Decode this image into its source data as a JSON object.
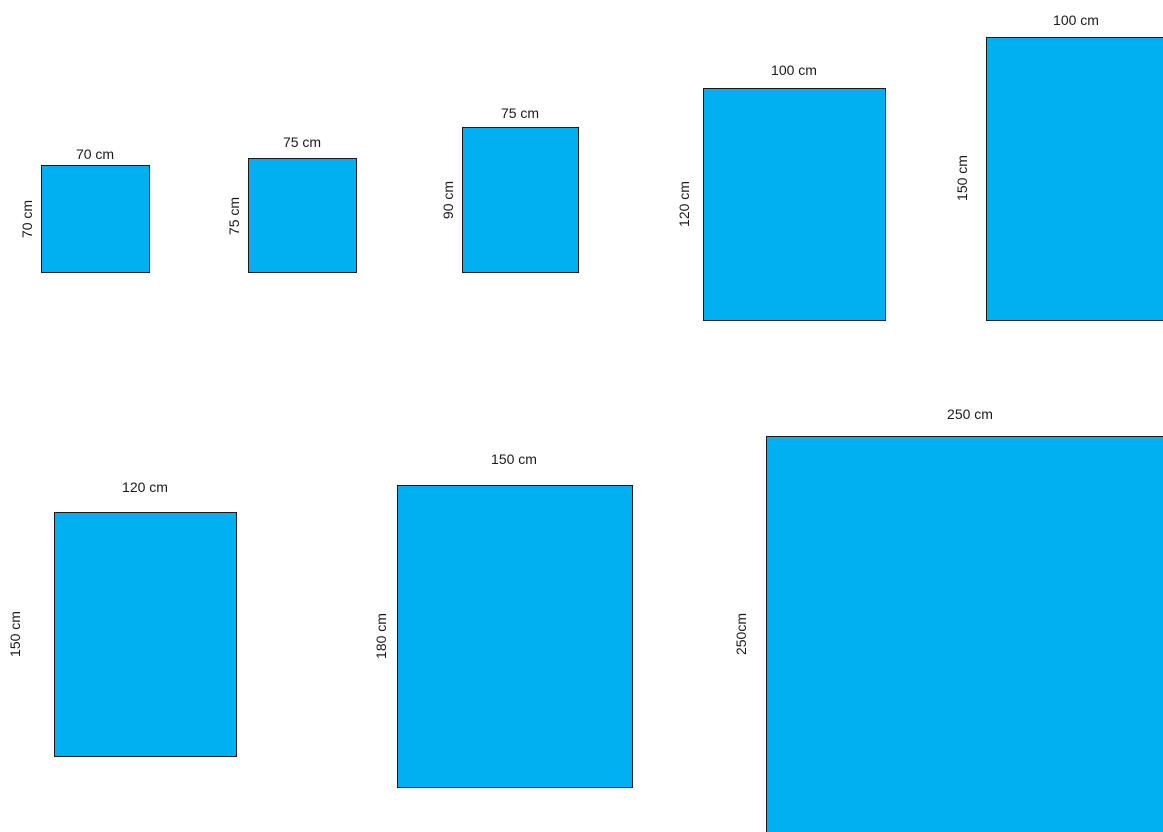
{
  "diagram": {
    "fill_color": "#00b0f0",
    "stroke_color": "#1a1a1a",
    "panels": [
      {
        "width_label": "70 cm",
        "height_label": "70 cm"
      },
      {
        "width_label": "75 cm",
        "height_label": "75 cm"
      },
      {
        "width_label": "75 cm",
        "height_label": "90 cm"
      },
      {
        "width_label": "100 cm",
        "height_label": "120 cm"
      },
      {
        "width_label": "100 cm",
        "height_label": "150 cm"
      },
      {
        "width_label": "120 cm",
        "height_label": "150 cm"
      },
      {
        "width_label": "150 cm",
        "height_label": "180 cm"
      },
      {
        "width_label": "250 cm",
        "height_label": "250cm"
      }
    ]
  }
}
